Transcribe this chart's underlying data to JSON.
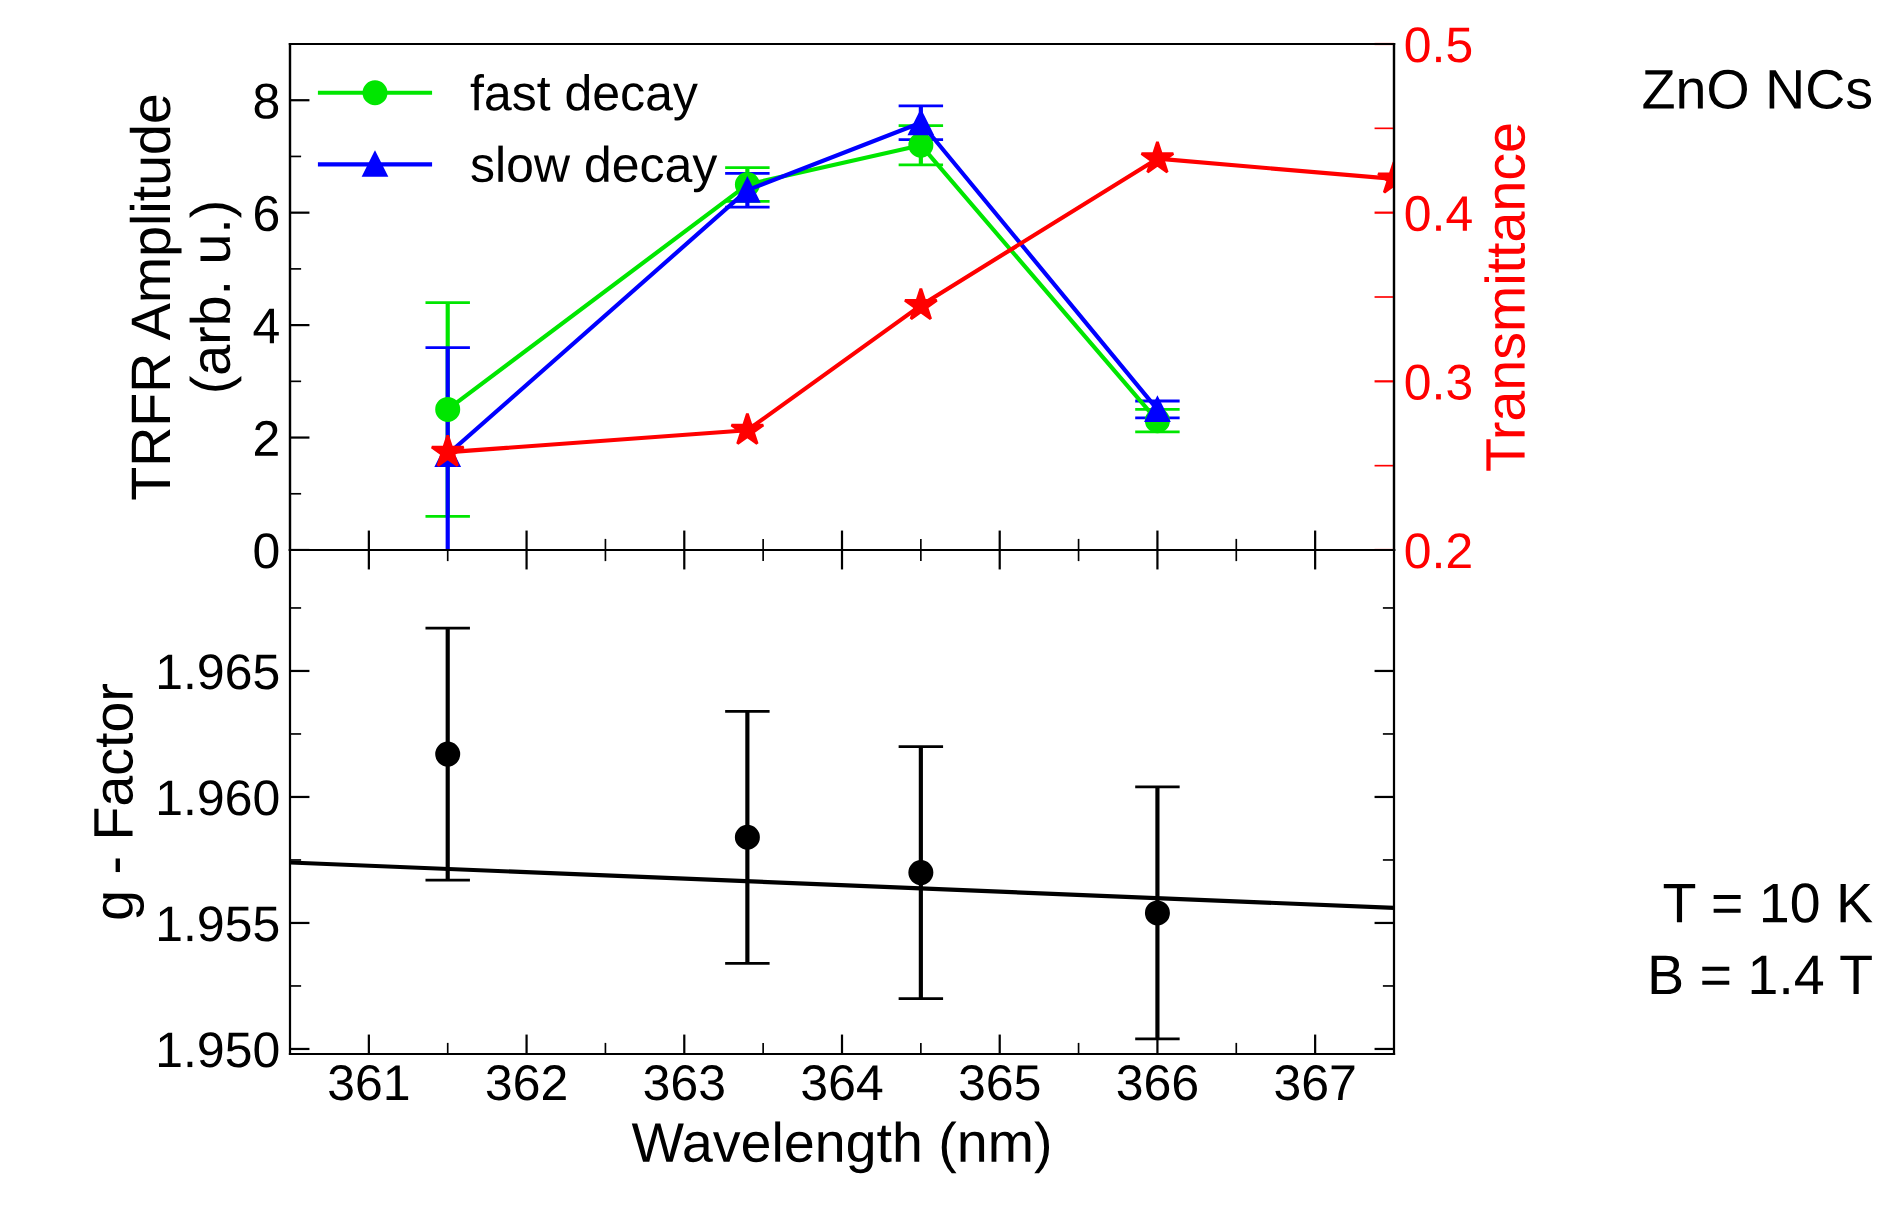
{
  "chart_data": [
    {
      "type": "line",
      "ylabel": "TRFR Amplitude\n(arb. u.)",
      "y2label": "Transmittance",
      "annotations": [
        "ZnO NCs"
      ],
      "xlim": [
        360.5,
        367.5
      ],
      "ylim": [
        0,
        9
      ],
      "yticks": [
        0,
        2,
        4,
        6,
        8
      ],
      "y2lim": [
        0.2,
        0.5
      ],
      "y2ticks": [
        0.2,
        0.3,
        0.4,
        0.5
      ],
      "tick_labels": "y",
      "legend": "top left",
      "grid": false,
      "series": [
        {
          "name": "fast decay",
          "color": "#00e600",
          "marker": "circle",
          "x": [
            361.5,
            363.4,
            364.5,
            366
          ],
          "values": [
            2.5,
            6.5,
            7.2,
            2.3
          ],
          "errors": [
            1.9,
            0.3,
            0.35,
            0.2
          ]
        },
        {
          "name": "slow decay",
          "color": "#0000ff",
          "marker": "triangle",
          "x": [
            361.5,
            363.4,
            364.5,
            366
          ],
          "values": [
            1.7,
            6.4,
            7.6,
            2.5
          ],
          "errors": [
            1.9,
            0.3,
            0.3,
            0.15
          ]
        },
        {
          "color": "#ff0000",
          "marker": "star",
          "axis": "y2",
          "x": [
            361.5,
            363.4,
            364.5,
            366,
            367.5
          ],
          "values": [
            0.258,
            0.271,
            0.345,
            0.432,
            0.42
          ]
        }
      ]
    },
    {
      "type": "scatter",
      "xlabel": "Wavelength (nm)",
      "ylabel": "g - Factor",
      "annotations": [
        "T = 10 K\nB = 1.4 T"
      ],
      "xlim": [
        360.5,
        367.5
      ],
      "xticks": [
        361,
        362,
        363,
        364,
        365,
        366,
        367
      ],
      "ylim": [
        1.9498,
        1.9698
      ],
      "yticks": [
        {
          "value": 1.95,
          "label": "1.950"
        },
        {
          "value": 1.955,
          "label": "1.955"
        },
        {
          "value": 1.96,
          "label": "1.960"
        },
        {
          "value": 1.965,
          "label": "1.965"
        }
      ],
      "grid": false,
      "legend": false,
      "series": [
        {
          "color": "#000000",
          "marker": "circle",
          "x": [
            361.5,
            363.4,
            364.5,
            366
          ],
          "values": [
            1.9617,
            1.9584,
            1.957,
            1.9554
          ],
          "errors": [
            0.005,
            0.005,
            0.005,
            0.005
          ]
        },
        {
          "type": "line",
          "color": "#000000",
          "marker": "none",
          "x": [
            360.5,
            367.5
          ],
          "values": [
            1.9574,
            1.9556
          ]
        }
      ]
    }
  ]
}
